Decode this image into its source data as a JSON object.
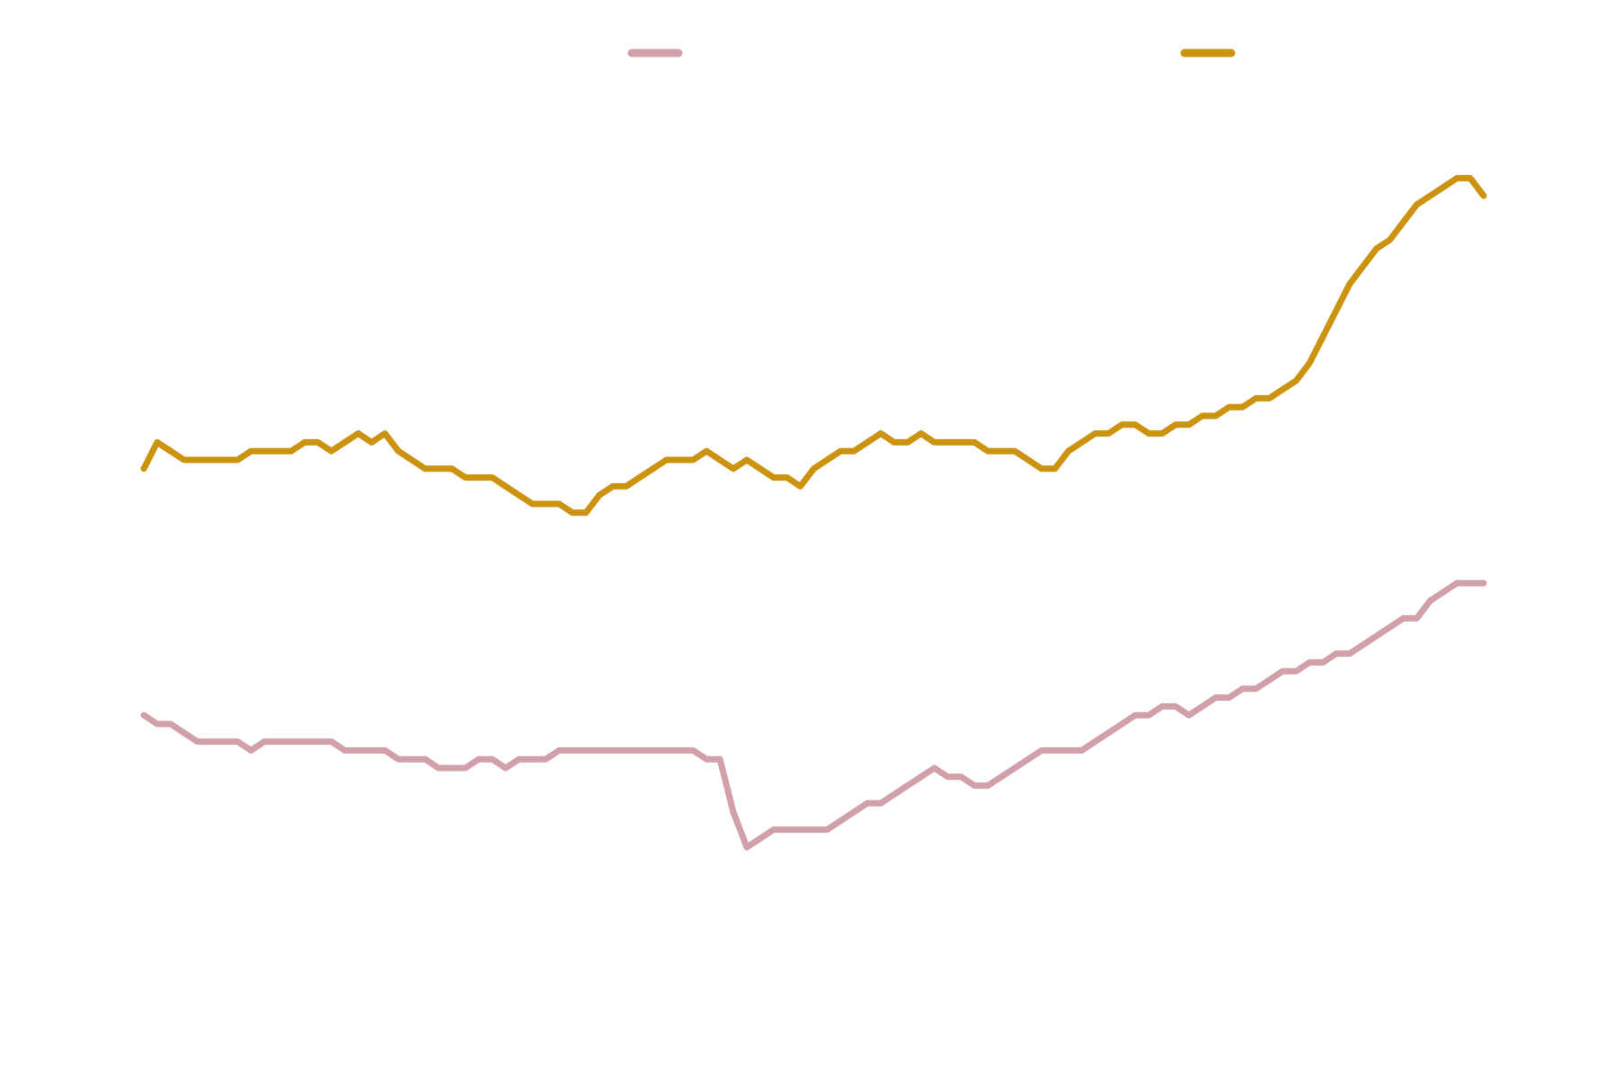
{
  "chart_data": {
    "type": "line",
    "title": "",
    "xlabel": "",
    "ylabel": "",
    "grid": false,
    "axes_visible": false,
    "legend_position": "top",
    "x": [
      0,
      10,
      20,
      30,
      40,
      50,
      60,
      70,
      80,
      90,
      100,
      110,
      120,
      130,
      140,
      150,
      160,
      170,
      180,
      190,
      200,
      210,
      220,
      230,
      240,
      250,
      260,
      270,
      280,
      290,
      300,
      310,
      320,
      330,
      340,
      350,
      360,
      370,
      380,
      390,
      400,
      410,
      420,
      430,
      440,
      450,
      460,
      470,
      480,
      490,
      500,
      510,
      520,
      530,
      540,
      550,
      560,
      570,
      580,
      590,
      600,
      610,
      620,
      630,
      640,
      650,
      660,
      670,
      680,
      690,
      700,
      710,
      720,
      730,
      740,
      750,
      760,
      770,
      780,
      790,
      800,
      810,
      820,
      830,
      840,
      850,
      860,
      870,
      880,
      890,
      900,
      910,
      920,
      930,
      940,
      950,
      960,
      970,
      980,
      990,
      1000
    ],
    "xlim": [
      0,
      1000
    ],
    "ylim": [
      0,
      100
    ],
    "series": [
      {
        "name": "",
        "color": "#d1a0a8",
        "values": [
          31,
          30,
          30,
          29,
          28,
          28,
          28,
          28,
          27,
          28,
          28,
          28,
          28,
          28,
          28,
          27,
          27,
          27,
          27,
          26,
          26,
          26,
          25,
          25,
          25,
          26,
          26,
          25,
          26,
          26,
          26,
          27,
          27,
          27,
          27,
          27,
          27,
          27,
          27,
          27,
          27,
          27,
          26,
          26,
          20,
          16,
          17,
          18,
          18,
          18,
          18,
          18,
          19,
          20,
          21,
          21,
          22,
          23,
          24,
          25,
          24,
          24,
          23,
          23,
          24,
          25,
          26,
          27,
          27,
          27,
          27,
          28,
          29,
          30,
          31,
          31,
          32,
          32,
          31,
          32,
          33,
          33,
          34,
          34,
          35,
          36,
          36,
          37,
          37,
          38,
          38,
          39,
          40,
          41,
          42,
          42,
          44,
          45,
          46,
          46,
          46
        ]
      },
      {
        "name": "",
        "color": "#cc9310",
        "values": [
          59,
          62,
          61,
          60,
          60,
          60,
          60,
          60,
          61,
          61,
          61,
          61,
          62,
          62,
          61,
          62,
          63,
          62,
          63,
          61,
          60,
          59,
          59,
          59,
          58,
          58,
          58,
          57,
          56,
          55,
          55,
          55,
          54,
          54,
          56,
          57,
          57,
          58,
          59,
          60,
          60,
          60,
          61,
          60,
          59,
          60,
          59,
          58,
          58,
          57,
          59,
          60,
          61,
          61,
          62,
          63,
          62,
          62,
          63,
          62,
          62,
          62,
          62,
          61,
          61,
          61,
          60,
          59,
          59,
          61,
          62,
          63,
          63,
          64,
          64,
          63,
          63,
          64,
          64,
          65,
          65,
          66,
          66,
          67,
          67,
          68,
          69,
          71,
          74,
          77,
          80,
          82,
          84,
          85,
          87,
          89,
          90,
          91,
          92,
          92,
          90
        ]
      }
    ]
  }
}
